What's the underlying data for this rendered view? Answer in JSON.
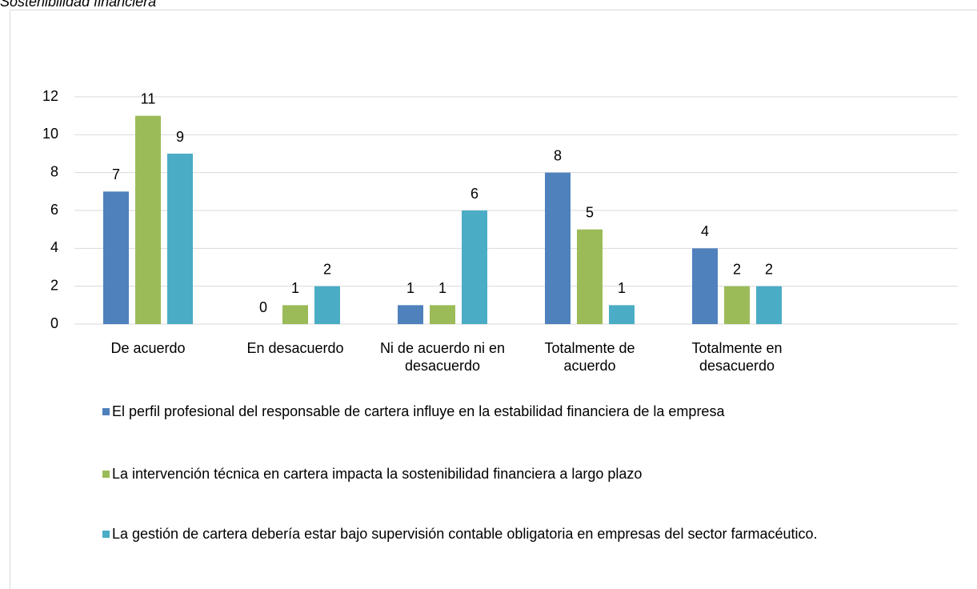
{
  "chart_data": {
    "type": "bar",
    "title": "Sostenibilidad financiera",
    "categories": [
      "De acuerdo",
      "En desacuerdo",
      "Ni de acuerdo ni en desacuerdo",
      "Totalmente de acuerdo",
      "Totalmente en desacuerdo",
      null
    ],
    "series": [
      {
        "name": "El perfil profesional del responsable de cartera influye en la estabilidad financiera de la empresa",
        "color": "#4f81bd",
        "values": [
          7,
          0,
          1,
          8,
          4,
          null
        ]
      },
      {
        "name": "La intervención técnica en cartera impacta la sostenibilidad financiera a largo plazo",
        "color": "#9bbb59",
        "values": [
          11,
          1,
          1,
          5,
          2,
          null
        ]
      },
      {
        "name": "La gestión de cartera debería estar bajo supervisión contable obligatoria en empresas del sector farmacéutico.",
        "color": "#4bacc6",
        "values": [
          9,
          2,
          6,
          1,
          2,
          null
        ]
      }
    ],
    "ylim": [
      0,
      12
    ],
    "yticks": [
      0,
      2,
      4,
      6,
      8,
      10,
      12
    ],
    "grid": true,
    "legend": "bottom"
  }
}
